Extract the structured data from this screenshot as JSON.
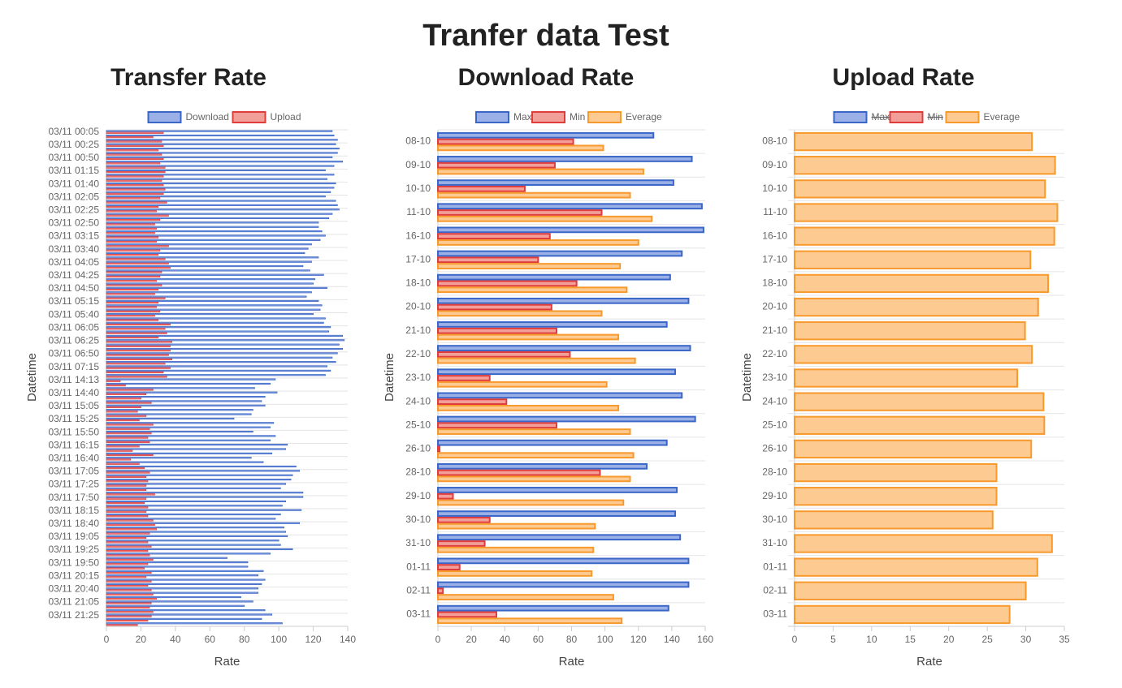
{
  "title": "Tranfer data Test",
  "chart_data": [
    {
      "type": "bar",
      "orientation": "horizontal",
      "title": "Transfer Rate",
      "xlabel": "Rate",
      "ylabel": "Datetime",
      "categories": [
        "03/11 00:05",
        null,
        null,
        "03/11 00:25",
        null,
        null,
        "03/11 00:50",
        null,
        null,
        "03/11 01:15",
        null,
        null,
        "03/11 01:40",
        null,
        null,
        "03/11 02:05",
        null,
        null,
        "03/11 02:25",
        null,
        null,
        "03/11 02:50",
        null,
        null,
        "03/11 03:15",
        null,
        null,
        "03/11 03:40",
        null,
        null,
        "03/11 04:05",
        null,
        null,
        "03/11 04:25",
        null,
        null,
        "03/11 04:50",
        null,
        null,
        "03/11 05:15",
        null,
        null,
        "03/11 05:40",
        null,
        null,
        "03/11 06:05",
        null,
        null,
        "03/11 06:25",
        null,
        null,
        "03/11 06:50",
        null,
        null,
        "03/11 07:15",
        null,
        null,
        "03/11 14:13",
        null,
        null,
        "03/11 14:40",
        null,
        null,
        "03/11 15:05",
        null,
        null,
        "03/11 15:25",
        null,
        null,
        "03/11 15:50",
        null,
        null,
        "03/11 16:15",
        null,
        null,
        "03/11 16:40",
        null,
        null,
        "03/11 17:05",
        null,
        null,
        "03/11 17:25",
        null,
        null,
        "03/11 17:50",
        null,
        null,
        "03/11 18:15",
        null,
        null,
        "03/11 18:40",
        null,
        null,
        "03/11 19:05",
        null,
        null,
        "03/11 19:25",
        null,
        null,
        "03/11 19:50",
        null,
        null,
        "03/11 20:15",
        null,
        null,
        "03/11 20:40",
        null,
        null,
        "03/11 21:05",
        null,
        null,
        "03/11 21:25",
        null,
        null
      ],
      "series": [
        {
          "name": "Download",
          "color": "#3a66c8",
          "fill": "#9ab0e6",
          "values": [
            131,
            132,
            134,
            133,
            135,
            134,
            131,
            137,
            132,
            127,
            132,
            128,
            133,
            132,
            130,
            127,
            133,
            134,
            135,
            131,
            129,
            123,
            123,
            125,
            127,
            124,
            119,
            117,
            115,
            123,
            119,
            114,
            118,
            126,
            121,
            120,
            128,
            119,
            116,
            123,
            125,
            124,
            120,
            127,
            126,
            130,
            129,
            137,
            138,
            135,
            137,
            134,
            131,
            133,
            128,
            130,
            127,
            98,
            95,
            86,
            99,
            92,
            90,
            92,
            85,
            84,
            74,
            97,
            95,
            85,
            98,
            95,
            105,
            104,
            96,
            84,
            91,
            110,
            112,
            108,
            107,
            104,
            101,
            114,
            114,
            104,
            102,
            113,
            101,
            98,
            112,
            103,
            104,
            105,
            100,
            101,
            108,
            95,
            70,
            82,
            82,
            91,
            88,
            92,
            90,
            88,
            88,
            78,
            85,
            80,
            92,
            96,
            90,
            102
          ]
        },
        {
          "name": "Upload",
          "color": "#e03c3c",
          "fill": "#f39f99",
          "values": [
            33,
            27,
            32,
            33,
            30,
            32,
            33,
            31,
            34,
            34,
            33,
            32,
            33,
            34,
            33,
            31,
            35,
            30,
            29,
            36,
            31,
            28,
            29,
            28,
            30,
            29,
            36,
            31,
            30,
            34,
            36,
            37,
            32,
            31,
            29,
            32,
            30,
            28,
            34,
            30,
            29,
            31,
            28,
            30,
            37,
            34,
            35,
            30,
            38,
            37,
            37,
            36,
            38,
            34,
            37,
            33,
            35,
            8,
            11,
            27,
            23,
            20,
            26,
            20,
            18,
            23,
            19,
            27,
            25,
            26,
            24,
            25,
            19,
            15,
            27,
            14,
            19,
            22,
            25,
            23,
            24,
            23,
            23,
            28,
            23,
            22,
            24,
            23,
            24,
            27,
            28,
            29,
            25,
            23,
            24,
            26,
            24,
            25,
            27,
            24,
            22,
            26,
            23,
            26,
            24,
            26,
            27,
            29,
            26,
            25,
            27,
            26,
            24,
            18
          ]
        }
      ],
      "xlim": [
        0,
        140
      ],
      "xticks": [
        0,
        20,
        40,
        60,
        80,
        100,
        120,
        140
      ],
      "grid": true
    },
    {
      "type": "bar",
      "orientation": "horizontal",
      "title": "Download Rate",
      "xlabel": "Rate",
      "ylabel": "Datetime",
      "categories": [
        "08-10",
        "09-10",
        "10-10",
        "11-10",
        "16-10",
        "17-10",
        "18-10",
        "20-10",
        "21-10",
        "22-10",
        "23-10",
        "24-10",
        "25-10",
        "26-10",
        "28-10",
        "29-10",
        "30-10",
        "31-10",
        "01-11",
        "02-11",
        "03-11"
      ],
      "series": [
        {
          "name": "Max",
          "color": "#3a66c8",
          "fill": "#9ab0e6",
          "values": [
            129,
            152,
            141,
            158,
            159,
            146,
            139,
            150,
            137,
            151,
            142,
            146,
            154,
            137,
            125,
            143,
            142,
            145,
            150,
            150,
            138
          ]
        },
        {
          "name": "Min",
          "color": "#e03c3c",
          "fill": "#f39f99",
          "values": [
            81,
            70,
            52,
            98,
            67,
            60,
            83,
            68,
            71,
            79,
            31,
            41,
            71,
            1,
            97,
            9,
            31,
            28,
            13,
            3,
            35
          ]
        },
        {
          "name": "Everage",
          "color": "#f7992c",
          "fill": "#fdcb92",
          "values": [
            99,
            123,
            115,
            128,
            120,
            109,
            113,
            98,
            108,
            118,
            101,
            108,
            115,
            117,
            115,
            111,
            94,
            93,
            92,
            105,
            110
          ]
        }
      ],
      "xlim": [
        0,
        160
      ],
      "xticks": [
        0,
        20,
        40,
        60,
        80,
        100,
        120,
        140,
        160
      ],
      "grid": true
    },
    {
      "type": "bar",
      "orientation": "horizontal",
      "title": "Upload Rate",
      "xlabel": "Rate",
      "ylabel": "Datetime",
      "categories": [
        "08-10",
        "09-10",
        "10-10",
        "11-10",
        "16-10",
        "17-10",
        "18-10",
        "20-10",
        "21-10",
        "22-10",
        "23-10",
        "24-10",
        "25-10",
        "26-10",
        "28-10",
        "29-10",
        "30-10",
        "31-10",
        "01-11",
        "02-11",
        "03-11"
      ],
      "series": [
        {
          "name": "Max",
          "color": "#3a66c8",
          "fill": "#9ab0e6",
          "hidden": true
        },
        {
          "name": "Min",
          "color": "#e03c3c",
          "fill": "#f39f99",
          "hidden": true
        },
        {
          "name": "Everage",
          "color": "#f7992c",
          "fill": "#fdcb92",
          "values": [
            30.8,
            33.8,
            32.5,
            34.1,
            33.7,
            30.6,
            32.9,
            31.6,
            29.9,
            30.8,
            28.9,
            32.3,
            32.4,
            30.7,
            26.2,
            26.2,
            25.7,
            33.4,
            31.5,
            30.0,
            27.9
          ]
        }
      ],
      "xlim": [
        0,
        35
      ],
      "xticks": [
        0,
        5,
        10,
        15,
        20,
        25,
        30,
        35
      ],
      "grid": true
    }
  ]
}
